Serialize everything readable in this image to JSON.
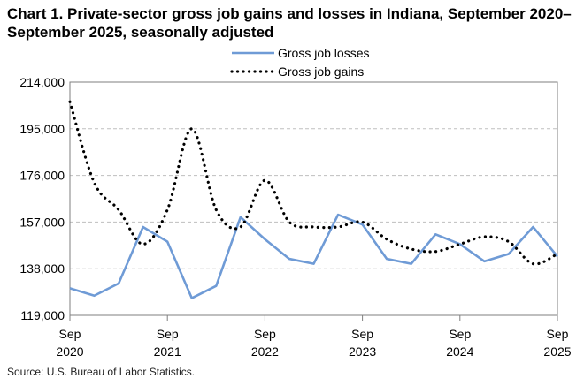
{
  "title": "Chart 1. Private-sector gross job gains and losses in Indiana, September 2020–September 2025, seasonally adjusted",
  "source": "Source: U.S. Bureau of Labor Statistics.",
  "chart_data": {
    "type": "line",
    "title": "Chart 1. Private-sector gross job gains and losses in Indiana, September 2020–September 2025, seasonally adjusted",
    "xlabel": "",
    "ylabel": "",
    "ylim": [
      119000,
      214000
    ],
    "y_ticks": [
      "214,000",
      "195,000",
      "176,000",
      "157,000",
      "138,000",
      "119,000"
    ],
    "y_tick_values": [
      214000,
      195000,
      176000,
      157000,
      138000,
      119000
    ],
    "x_ticks": [
      {
        "month": "Sep",
        "year": "2020"
      },
      {
        "month": "Sep",
        "year": "2021"
      },
      {
        "month": "Sep",
        "year": "2022"
      },
      {
        "month": "Sep",
        "year": "2023"
      },
      {
        "month": "Sep",
        "year": "2024"
      },
      {
        "month": "Sep",
        "year": "2025"
      }
    ],
    "grid": "horizontal",
    "legend_position": "top",
    "categories": [
      "Sep 2020",
      "Dec 2020",
      "Mar 2021",
      "Jun 2021",
      "Sep 2021",
      "Dec 2021",
      "Mar 2022",
      "Jun 2022",
      "Sep 2022",
      "Dec 2022",
      "Mar 2023",
      "Jun 2023",
      "Sep 2023",
      "Dec 2023",
      "Mar 2024",
      "Jun 2024",
      "Sep 2024",
      "Dec 2024",
      "Mar 2025",
      "Jun 2025",
      "Sep 2025"
    ],
    "series": [
      {
        "name": "Gross job losses",
        "color": "#6f9bd6",
        "style": "solid",
        "values": [
          130000,
          127000,
          132000,
          155000,
          149000,
          126000,
          131000,
          159000,
          150000,
          142000,
          140000,
          160000,
          156000,
          142000,
          140000,
          152000,
          148000,
          141000,
          144000,
          155000,
          143000
        ]
      },
      {
        "name": "Gross job gains",
        "color": "#000000",
        "style": "dotted",
        "values": [
          206000,
          173000,
          162000,
          148000,
          162000,
          195000,
          162000,
          155000,
          174000,
          157000,
          155000,
          155000,
          157000,
          150000,
          146000,
          145000,
          148000,
          151000,
          149000,
          140000,
          144000
        ]
      }
    ]
  }
}
